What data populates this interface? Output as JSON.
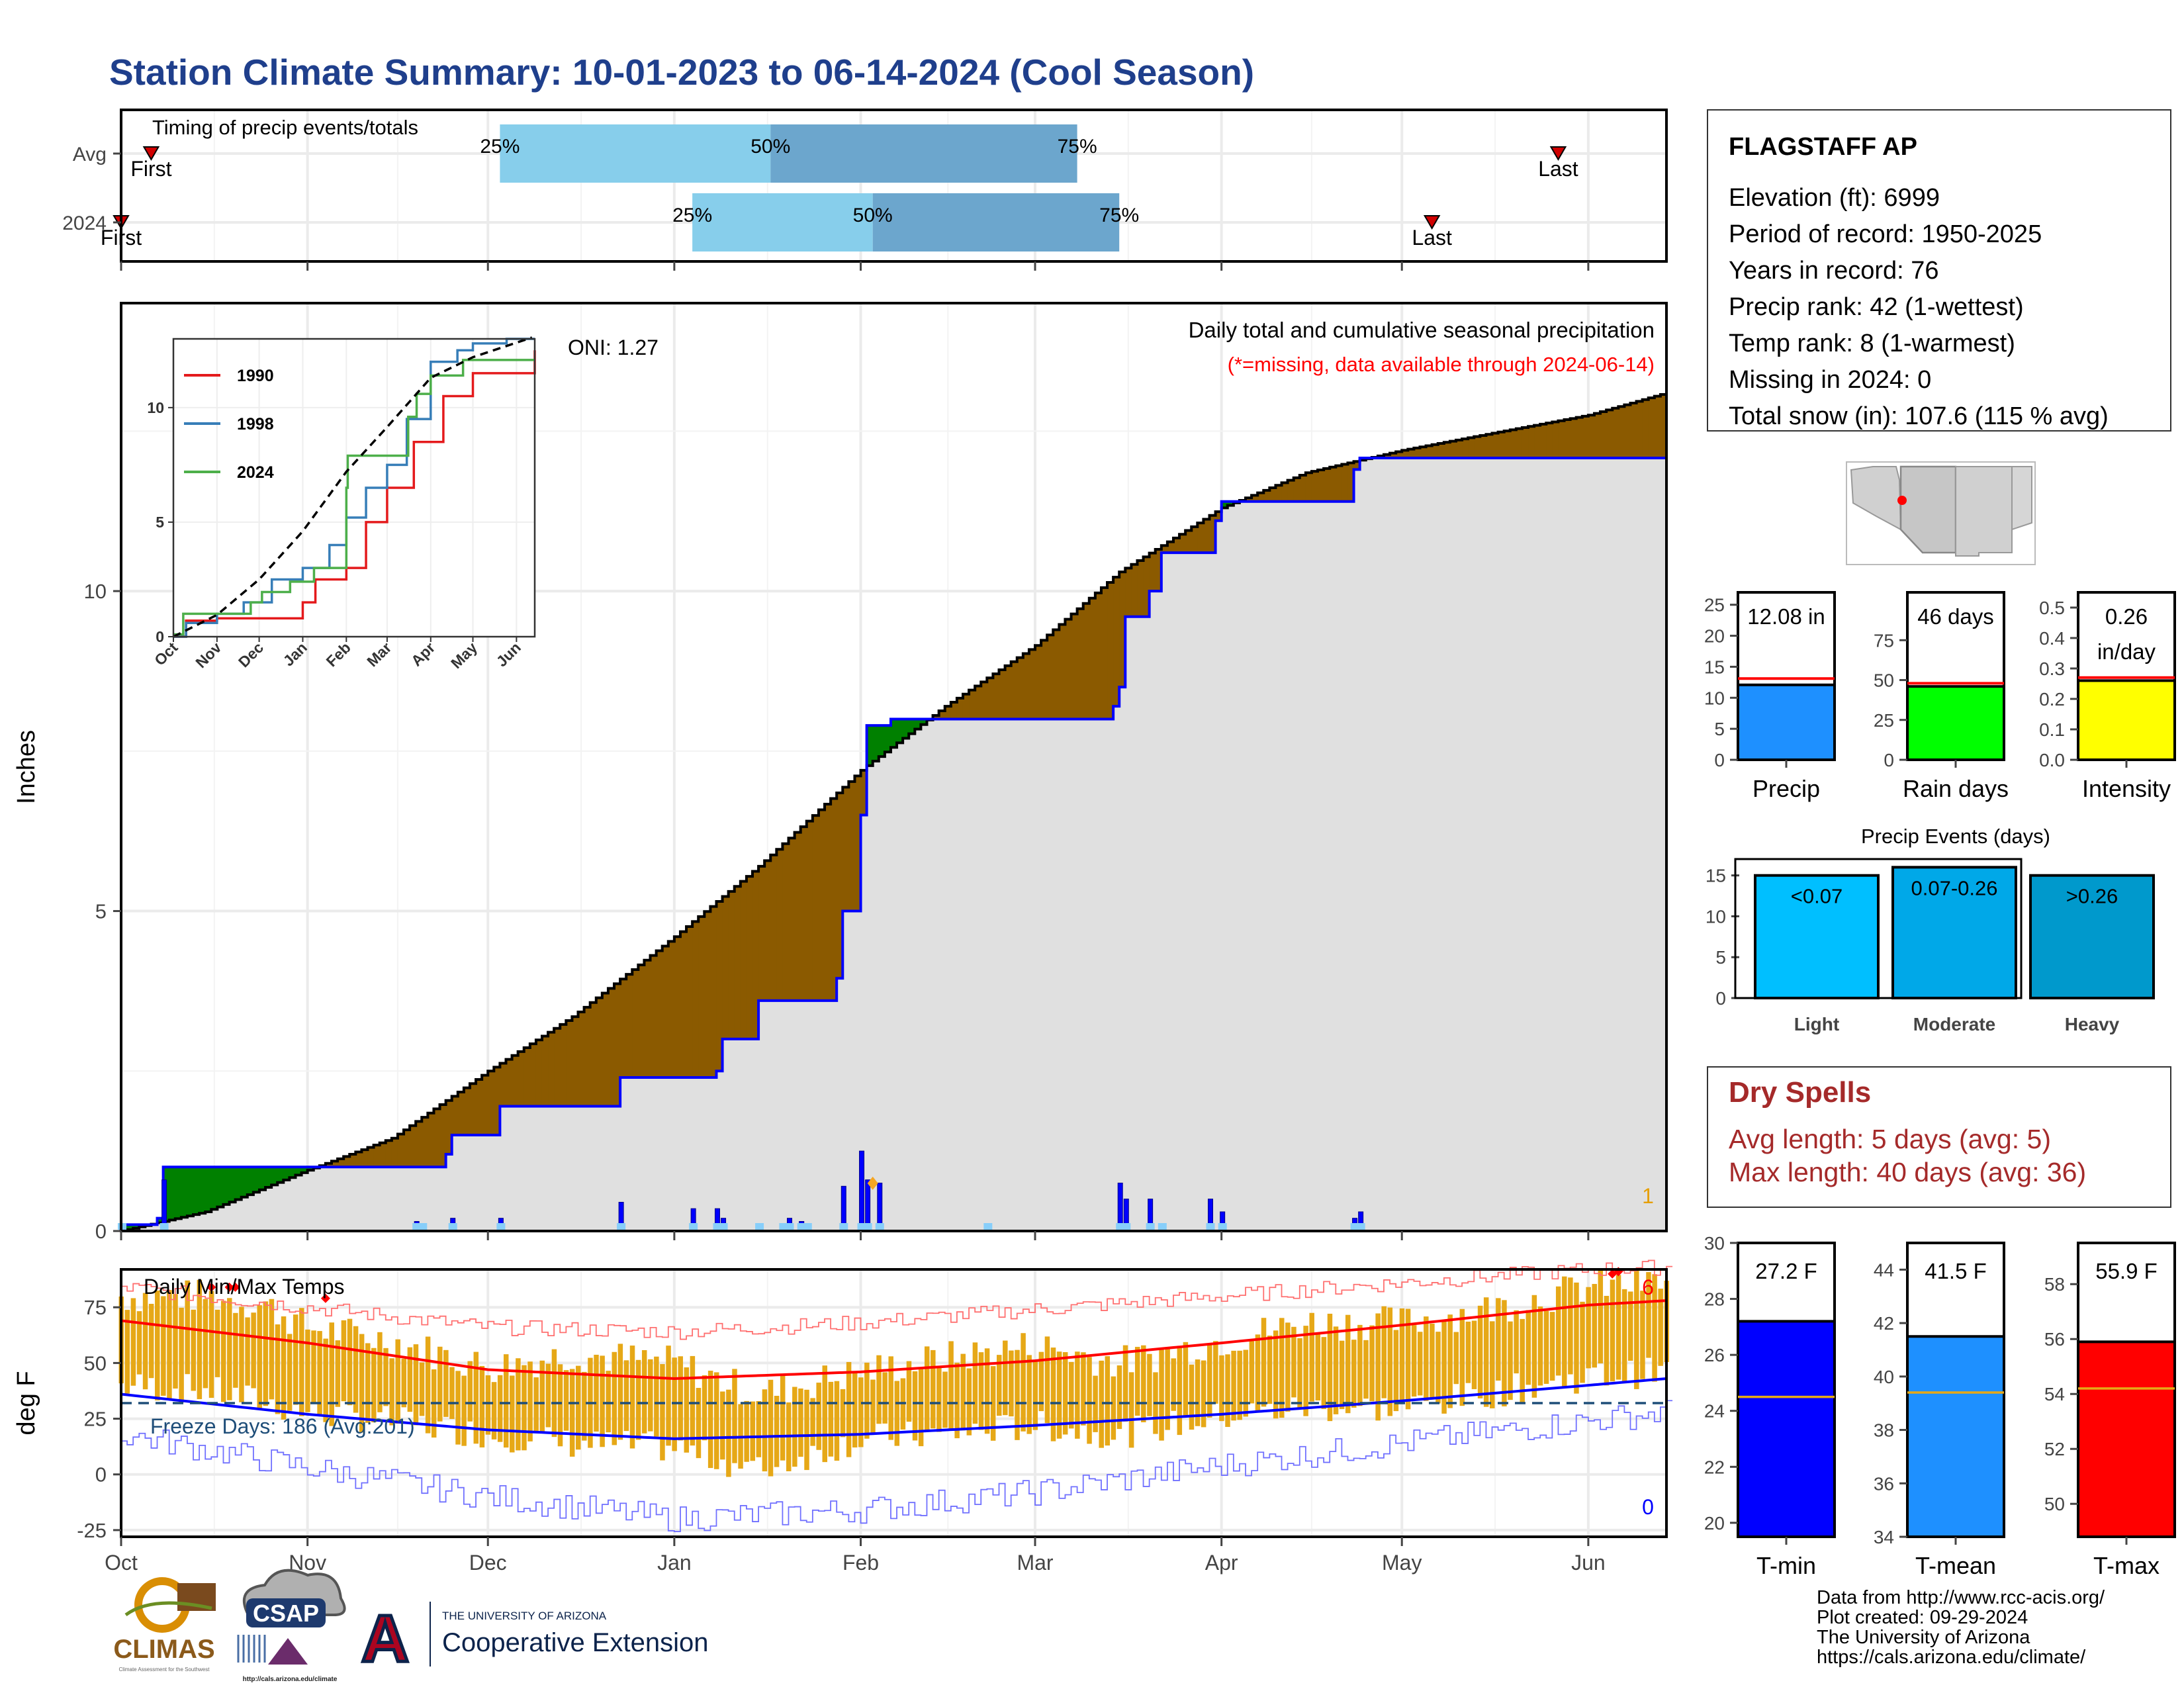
{
  "page": {
    "title": "Station Climate Summary: 10-01-2023 to 06-14-2024 (Cool Season)",
    "footer_lines": [
      "Data from http://www.rcc-acis.org/",
      "Plot created: 09-29-2024",
      "The University of Arizona",
      "https://cals.arizona.edu/climate/"
    ],
    "logos": {
      "climas": "CLIMAS",
      "climas_sub": "Climate Assessment for the Southwest",
      "csap": "CSAP",
      "csap_url": "http://cals.arizona.edu/climate",
      "ua_small": "THE UNIVERSITY OF ARIZONA",
      "ua_big": "Cooperative Extension",
      "ua_letter": "A"
    },
    "colors": {
      "title": "#1F3F8C",
      "brown": "#8B5A00",
      "green": "#008000",
      "blue_line": "#0000FF",
      "gray_fill": "#E0E0E0",
      "quartile_light": "#87CEEB",
      "quartile_dark": "#6CA6CD",
      "orange_bars": "#E6A817",
      "dry_red": "#A52A2A"
    }
  },
  "station": {
    "name": "FLAGSTAFF AP",
    "lines": [
      "Elevation (ft): 6999",
      "Period of record: 1950-2025",
      "Years in record: 76",
      "Precip rank: 42 (1-wettest)",
      "Temp rank: 8 (1-warmest)",
      "Missing in 2024: 0",
      "Total snow (in): 107.6 (115 % avg)"
    ]
  },
  "dry_spells": {
    "title": "Dry Spells",
    "avg": "Avg length: 5 days (avg: 5)",
    "max": "Max length: 40 days (avg: 36)"
  },
  "month_labels": [
    "Oct",
    "Nov",
    "Dec",
    "Jan",
    "Feb",
    "Mar",
    "Apr",
    "May",
    "Jun"
  ],
  "chart_data": [
    {
      "id": "timing",
      "type": "bar",
      "title": "Timing of precip events/totals",
      "rows": [
        "Avg",
        "2024"
      ],
      "avg": {
        "first": "Oct 6",
        "q25": "Dec 3",
        "q50": "Jan 17",
        "q75": "Mar 8",
        "last": "May 27",
        "first_label": "First",
        "last_label": "Last",
        "q_labels": [
          "25%",
          "50%",
          "75%"
        ]
      },
      "y2024": {
        "first": "Oct 1",
        "q25": "Jan 4",
        "q50": "Feb 3",
        "q75": "Mar 15",
        "last": "May 6",
        "first_label": "First",
        "last_label": "Last",
        "q_labels": [
          "25%",
          "50%",
          "75%"
        ]
      }
    },
    {
      "id": "precip",
      "type": "area",
      "title": "Daily total and cumulative seasonal precipitation",
      "note": "(*=missing, data available through 2024-06-14)",
      "ylabel": "Inches",
      "ylim": [
        0,
        14.5
      ],
      "yticks": [
        0,
        5,
        10
      ],
      "oni": "ONI: 1.27",
      "corner_count": "1",
      "avg_cumulative": [
        [
          "Oct 1",
          0
        ],
        [
          "Oct 15",
          0.3
        ],
        [
          "Nov 1",
          0.95
        ],
        [
          "Nov 15",
          1.45
        ],
        [
          "Dec 1",
          2.5
        ],
        [
          "Dec 15",
          3.35
        ],
        [
          "Jan 1",
          4.6
        ],
        [
          "Jan 15",
          5.7
        ],
        [
          "Feb 1",
          7.2
        ],
        [
          "Feb 15",
          8.2
        ],
        [
          "Mar 1",
          9.15
        ],
        [
          "Mar 15",
          10.3
        ],
        [
          "Apr 1",
          11.3
        ],
        [
          "Apr 15",
          11.85
        ],
        [
          "May 1",
          12.2
        ],
        [
          "May 15",
          12.45
        ],
        [
          "Jun 1",
          12.75
        ],
        [
          "Jun 14",
          13.1
        ]
      ],
      "cumulative_2024": [
        [
          "Oct 1",
          0.1
        ],
        [
          "Oct 7",
          0.2
        ],
        [
          "Oct 8",
          1.0
        ],
        [
          "Nov 24",
          1.2
        ],
        [
          "Nov 25",
          1.5
        ],
        [
          "Dec 3",
          1.95
        ],
        [
          "Dec 23",
          2.4
        ],
        [
          "Jan 8",
          2.5
        ],
        [
          "Jan 9",
          3.0
        ],
        [
          "Jan 15",
          3.6
        ],
        [
          "Jan 28",
          3.95
        ],
        [
          "Jan 29",
          5.0
        ],
        [
          "Feb 1",
          6.5
        ],
        [
          "Feb 2",
          7.9
        ],
        [
          "Feb 6",
          8.0
        ],
        [
          "Mar 14",
          8.2
        ],
        [
          "Mar 15",
          8.5
        ],
        [
          "Mar 16",
          9.6
        ],
        [
          "Mar 20",
          10.0
        ],
        [
          "Mar 22",
          10.6
        ],
        [
          "Mar 31",
          11.1
        ],
        [
          "Apr 1",
          11.4
        ],
        [
          "Apr 23",
          11.9
        ],
        [
          "Apr 24",
          12.08
        ],
        [
          "Jun 14",
          12.08
        ]
      ],
      "daily_2024": [
        [
          "Oct 1",
          0.1
        ],
        [
          "Oct 8",
          0.8
        ],
        [
          "Nov 19",
          0.15
        ],
        [
          "Nov 20",
          0.08
        ],
        [
          "Nov 25",
          0.2
        ],
        [
          "Dec 3",
          0.2
        ],
        [
          "Dec 23",
          0.45
        ],
        [
          "Jan 4",
          0.35
        ],
        [
          "Jan 8",
          0.35
        ],
        [
          "Jan 9",
          0.2
        ],
        [
          "Jan 15",
          0.1
        ],
        [
          "Jan 19",
          0.1
        ],
        [
          "Jan 20",
          0.2
        ],
        [
          "Jan 22",
          0.15
        ],
        [
          "Jan 23",
          0.1
        ],
        [
          "Jan 29",
          0.7
        ],
        [
          "Feb 1",
          1.25
        ],
        [
          "Feb 2",
          0.8
        ],
        [
          "Feb 4",
          0.75
        ],
        [
          "Feb 22",
          0.05
        ],
        [
          "Mar 15",
          0.75
        ],
        [
          "Mar 16",
          0.5
        ],
        [
          "Mar 20",
          0.5
        ],
        [
          "Mar 22",
          0.1
        ],
        [
          "Mar 30",
          0.5
        ],
        [
          "Apr 1",
          0.3
        ],
        [
          "Apr 23",
          0.2
        ],
        [
          "Apr 24",
          0.3
        ]
      ]
    },
    {
      "id": "inset",
      "type": "line",
      "ylim": [
        0,
        13
      ],
      "yticks": [
        0,
        5,
        10
      ],
      "x": [
        "Oct",
        "Nov",
        "Dec",
        "Jan",
        "Feb",
        "Mar",
        "Apr",
        "May",
        "Jun"
      ],
      "series": [
        {
          "name": "1990",
          "color": "#E41A1C",
          "values": [
            [
              "Oct 1",
              0
            ],
            [
              "Oct 10",
              0.7
            ],
            [
              "Nov 1",
              0.8
            ],
            [
              "Dec 1",
              0.8
            ],
            [
              "Dec 25",
              0.8
            ],
            [
              "Jan 1",
              1.5
            ],
            [
              "Jan 10",
              2.5
            ],
            [
              "Feb 1",
              3.0
            ],
            [
              "Feb 15",
              5.0
            ],
            [
              "Mar 1",
              6.5
            ],
            [
              "Mar 20",
              8.5
            ],
            [
              "Apr 10",
              10.5
            ],
            [
              "May 1",
              11.5
            ],
            [
              "Jun 1",
              11.5
            ],
            [
              "Jun 14",
              12.5
            ]
          ]
        },
        {
          "name": "1998",
          "color": "#377EB8",
          "values": [
            [
              "Oct 1",
              0
            ],
            [
              "Oct 10",
              0.6
            ],
            [
              "Nov 1",
              1.0
            ],
            [
              "Nov 20",
              1.5
            ],
            [
              "Dec 10",
              2.5
            ],
            [
              "Jan 1",
              3.0
            ],
            [
              "Jan 20",
              4.0
            ],
            [
              "Feb 1",
              5.2
            ],
            [
              "Feb 15",
              6.5
            ],
            [
              "Mar 1",
              7.5
            ],
            [
              "Mar 15",
              9.5
            ],
            [
              "Apr 1",
              12.0
            ],
            [
              "Apr 20",
              12.5
            ],
            [
              "May 1",
              12.8
            ],
            [
              "May 25",
              14.0
            ]
          ]
        },
        {
          "name": "2024",
          "color": "#4DAF4A",
          "values": [
            [
              "Oct 1",
              0.1
            ],
            [
              "Oct 8",
              1.0
            ],
            [
              "Nov 25",
              1.5
            ],
            [
              "Dec 3",
              1.95
            ],
            [
              "Dec 23",
              2.4
            ],
            [
              "Jan 9",
              3.0
            ],
            [
              "Feb 1",
              6.5
            ],
            [
              "Feb 2",
              7.9
            ],
            [
              "Mar 16",
              9.6
            ],
            [
              "Mar 22",
              10.6
            ],
            [
              "Apr 1",
              11.4
            ],
            [
              "Apr 24",
              12.08
            ],
            [
              "Jun 14",
              12.08
            ]
          ]
        },
        {
          "name": "",
          "style": "dashed",
          "color": "#000000",
          "values": [
            [
              "Oct 1",
              0
            ],
            [
              "Nov 1",
              0.95
            ],
            [
              "Dec 1",
              2.5
            ],
            [
              "Jan 1",
              4.6
            ],
            [
              "Feb 1",
              7.2
            ],
            [
              "Mar 1",
              9.15
            ],
            [
              "Apr 1",
              11.3
            ],
            [
              "May 1",
              12.2
            ],
            [
              "Jun 14",
              13.1
            ]
          ]
        }
      ]
    },
    {
      "id": "temps",
      "type": "bar",
      "title": "Daily Min/Max Temps",
      "ylabel": "deg F",
      "ylim": [
        -28,
        92
      ],
      "yticks": [
        -25,
        0,
        25,
        50,
        75
      ],
      "freeze_label": "Freeze Days: 186 (Avg:201)",
      "freeze_line": 32,
      "record_high_count": "6",
      "record_low_count": "0",
      "avg_high": [
        [
          "Oct 1",
          69
        ],
        [
          "Nov 1",
          59
        ],
        [
          "Dec 1",
          47
        ],
        [
          "Jan 1",
          43
        ],
        [
          "Feb 1",
          46
        ],
        [
          "Mar 1",
          51
        ],
        [
          "Apr 1",
          59
        ],
        [
          "May 1",
          67
        ],
        [
          "Jun 1",
          76
        ],
        [
          "Jun 14",
          78
        ]
      ],
      "avg_low": [
        [
          "Oct 1",
          36
        ],
        [
          "Nov 1",
          27
        ],
        [
          "Dec 1",
          20
        ],
        [
          "Jan 1",
          16
        ],
        [
          "Feb 1",
          18
        ],
        [
          "Mar 1",
          22
        ],
        [
          "Apr 1",
          27
        ],
        [
          "May 1",
          33
        ],
        [
          "Jun 1",
          40
        ],
        [
          "Jun 14",
          43
        ]
      ],
      "record_high": [
        [
          "Oct 1",
          84
        ],
        [
          "Nov 1",
          75
        ],
        [
          "Dec 1",
          66
        ],
        [
          "Jan 1",
          64
        ],
        [
          "Feb 1",
          68
        ],
        [
          "Mar 1",
          74
        ],
        [
          "Apr 1",
          80
        ],
        [
          "May 1",
          86
        ],
        [
          "Jun 1",
          92
        ],
        [
          "Jun 14",
          93
        ]
      ],
      "record_low": [
        [
          "Oct 1",
          18
        ],
        [
          "Nov 1",
          3
        ],
        [
          "Dec 1",
          -10
        ],
        [
          "Jan 1",
          -20
        ],
        [
          "Feb 1",
          -16
        ],
        [
          "Mar 1",
          -8
        ],
        [
          "Apr 1",
          4
        ],
        [
          "May 1",
          14
        ],
        [
          "Jun 1",
          24
        ],
        [
          "Jun 14",
          28
        ]
      ],
      "daily_high": [
        [
          "Oct 1",
          80
        ],
        [
          "Oct 15",
          80
        ],
        [
          "Oct 25",
          76
        ],
        [
          "Nov 1",
          66
        ],
        [
          "Nov 15",
          60
        ],
        [
          "Dec 1",
          48
        ],
        [
          "Dec 15",
          54
        ],
        [
          "Jan 1",
          50
        ],
        [
          "Jan 15",
          36
        ],
        [
          "Feb 1",
          46
        ],
        [
          "Feb 15",
          52
        ],
        [
          "Mar 1",
          58
        ],
        [
          "Mar 15",
          50
        ],
        [
          "Apr 1",
          60
        ],
        [
          "Apr 15",
          68
        ],
        [
          "May 1",
          68
        ],
        [
          "May 15",
          74
        ],
        [
          "Jun 1",
          84
        ],
        [
          "Jun 14",
          86
        ]
      ],
      "daily_low": [
        [
          "Oct 1",
          40
        ],
        [
          "Oct 15",
          38
        ],
        [
          "Nov 1",
          28
        ],
        [
          "Nov 15",
          24
        ],
        [
          "Dec 1",
          18
        ],
        [
          "Dec 15",
          14
        ],
        [
          "Jan 1",
          12
        ],
        [
          "Jan 15",
          2
        ],
        [
          "Feb 1",
          16
        ],
        [
          "Feb 15",
          18
        ],
        [
          "Mar 1",
          22
        ],
        [
          "Mar 15",
          18
        ],
        [
          "Apr 1",
          26
        ],
        [
          "Apr 15",
          30
        ],
        [
          "May 1",
          30
        ],
        [
          "May 15",
          36
        ],
        [
          "Jun 1",
          44
        ],
        [
          "Jun 14",
          46
        ]
      ]
    },
    {
      "id": "precip_mini",
      "type": "bar",
      "categories": [
        "Precip",
        "Rain days",
        "Intensity"
      ],
      "values": [
        12.08,
        46,
        0.26
      ],
      "avg_values": [
        13.1,
        48,
        0.27
      ],
      "labels": [
        "12.08 in",
        "46 days",
        "0.26\nin/day"
      ],
      "ylims": [
        [
          0,
          27
        ],
        [
          0,
          105
        ],
        [
          0,
          0.55
        ]
      ],
      "yticks": [
        [
          0,
          5,
          10,
          15,
          20,
          25
        ],
        [
          0,
          25,
          50,
          75
        ],
        [
          0.0,
          0.1,
          0.2,
          0.3,
          0.4,
          0.5
        ]
      ],
      "bar_colors": [
        "#1E90FF",
        "#00FF00",
        "#FFFF00"
      ]
    },
    {
      "id": "events",
      "type": "bar",
      "title": "Precip Events (days)",
      "categories": [
        "Light",
        "Moderate",
        "Heavy"
      ],
      "values": [
        15,
        16,
        15
      ],
      "labels": [
        "<0.07",
        "0.07-0.26",
        ">0.26"
      ],
      "ylim": [
        0,
        17
      ],
      "yticks": [
        0,
        5,
        10,
        15
      ],
      "bar_colors": [
        "#00BFFF",
        "#00A8E8",
        "#0099CC"
      ]
    },
    {
      "id": "temp_mini",
      "type": "bar",
      "categories": [
        "T-min",
        "T-mean",
        "T-max"
      ],
      "values": [
        27.2,
        41.5,
        55.9
      ],
      "avg_values": [
        24.5,
        39.4,
        54.2
      ],
      "labels": [
        "27.2 F",
        "41.5 F",
        "55.9 F"
      ],
      "ylims": [
        [
          19.5,
          30
        ],
        [
          34,
          45
        ],
        [
          48.8,
          59.5
        ]
      ],
      "yticks": [
        [
          20,
          22,
          24,
          26,
          28,
          30
        ],
        [
          34,
          36,
          38,
          40,
          42,
          44
        ],
        [
          50,
          52,
          54,
          56,
          58
        ]
      ],
      "bar_colors": [
        "#0000FF",
        "#1E90FF",
        "#FF0000"
      ]
    }
  ]
}
